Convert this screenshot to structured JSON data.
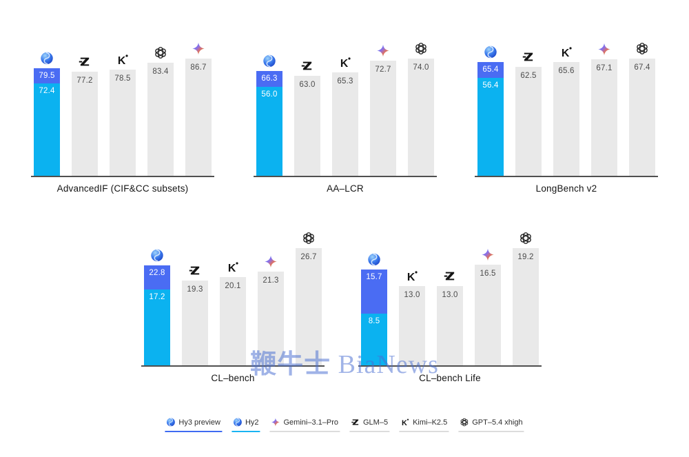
{
  "watermark": {
    "text_zh": "鞭牛士",
    "text_en": " BiaNews",
    "color": "#4a6fd2"
  },
  "colors": {
    "hy3_segment": "#4a6cf3",
    "hy2_segment": "#0bb2f0",
    "default_bar": "#e9e9e9",
    "axis": "#4f4f4f",
    "hy3_underline": "#3f6bf2",
    "hy2_underline": "#19b4f2",
    "default_underline": "#dcdcdc"
  },
  "chart_data": [
    {
      "type": "bar",
      "title": "AdvancedIF (CIF&CC subsets)",
      "ylim": [
        0,
        86.7
      ],
      "bars": [
        {
          "type": "stacked",
          "icon": "hunyuan-icon",
          "segments": [
            {
              "model": "Hy3 preview",
              "value": 79.5
            },
            {
              "model": "Hy2",
              "value": 72.4
            }
          ]
        },
        {
          "type": "plain",
          "icon": "glm-icon",
          "model": "GLM–5",
          "value": 77.2
        },
        {
          "type": "plain",
          "icon": "kimi-icon",
          "model": "Kimi–K2.5",
          "value": 78.5
        },
        {
          "type": "plain",
          "icon": "openai-icon",
          "model": "GPT–5.4 xhigh",
          "value": 83.4
        },
        {
          "type": "plain",
          "icon": "gemini-icon",
          "model": "Gemini–3.1–Pro",
          "value": 86.7
        }
      ]
    },
    {
      "type": "bar",
      "title": "AA–LCR",
      "ylim": [
        0,
        74.0
      ],
      "bars": [
        {
          "type": "stacked",
          "icon": "hunyuan-icon",
          "segments": [
            {
              "model": "Hy3 preview",
              "value": 66.3
            },
            {
              "model": "Hy2",
              "value": 56.0
            }
          ]
        },
        {
          "type": "plain",
          "icon": "glm-icon",
          "model": "GLM–5",
          "value": 63.0
        },
        {
          "type": "plain",
          "icon": "kimi-icon",
          "model": "Kimi–K2.5",
          "value": 65.3
        },
        {
          "type": "plain",
          "icon": "gemini-icon",
          "model": "Gemini–3.1–Pro",
          "value": 72.7
        },
        {
          "type": "plain",
          "icon": "openai-icon",
          "model": "GPT–5.4 xhigh",
          "value": 74.0
        }
      ]
    },
    {
      "type": "bar",
      "title": "LongBench v2",
      "ylim": [
        0,
        67.4
      ],
      "bars": [
        {
          "type": "stacked",
          "icon": "hunyuan-icon",
          "segments": [
            {
              "model": "Hy3 preview",
              "value": 65.4
            },
            {
              "model": "Hy2",
              "value": 56.4
            }
          ]
        },
        {
          "type": "plain",
          "icon": "glm-icon",
          "model": "GLM–5",
          "value": 62.5
        },
        {
          "type": "plain",
          "icon": "kimi-icon",
          "model": "Kimi–K2.5",
          "value": 65.6
        },
        {
          "type": "plain",
          "icon": "gemini-icon",
          "model": "Gemini–3.1–Pro",
          "value": 67.1
        },
        {
          "type": "plain",
          "icon": "openai-icon",
          "model": "GPT–5.4 xhigh",
          "value": 67.4
        }
      ]
    },
    {
      "type": "bar",
      "title": "CL–bench",
      "ylim": [
        0,
        26.7
      ],
      "bars": [
        {
          "type": "stacked",
          "icon": "hunyuan-icon",
          "segments": [
            {
              "model": "Hy3 preview",
              "value": 22.8
            },
            {
              "model": "Hy2",
              "value": 17.2
            }
          ]
        },
        {
          "type": "plain",
          "icon": "glm-icon",
          "model": "GLM–5",
          "value": 19.3
        },
        {
          "type": "plain",
          "icon": "kimi-icon",
          "model": "Kimi–K2.5",
          "value": 20.1
        },
        {
          "type": "plain",
          "icon": "gemini-icon",
          "model": "Gemini–3.1–Pro",
          "value": 21.3
        },
        {
          "type": "plain",
          "icon": "openai-icon",
          "model": "GPT–5.4 xhigh",
          "value": 26.7
        }
      ]
    },
    {
      "type": "bar",
      "title": "CL–bench Life",
      "ylim": [
        0,
        19.2
      ],
      "bars": [
        {
          "type": "stacked",
          "icon": "hunyuan-icon",
          "segments": [
            {
              "model": "Hy3 preview",
              "value": 15.7
            },
            {
              "model": "Hy2",
              "value": 8.5
            }
          ]
        },
        {
          "type": "plain",
          "icon": "kimi-icon",
          "model": "Kimi–K2.5",
          "value": 13.0
        },
        {
          "type": "plain",
          "icon": "glm-icon",
          "model": "GLM–5",
          "value": 13.0
        },
        {
          "type": "plain",
          "icon": "gemini-icon",
          "model": "Gemini–3.1–Pro",
          "value": 16.5
        },
        {
          "type": "plain",
          "icon": "openai-icon",
          "model": "GPT–5.4 xhigh",
          "value": 19.2
        }
      ]
    }
  ],
  "legend": {
    "items": [
      {
        "label": "Hy3 preview",
        "icon": "hunyuan-icon",
        "underline": "hy3_underline"
      },
      {
        "label": "Hy2",
        "icon": "hunyuan-icon",
        "underline": "hy2_underline"
      },
      {
        "label": "Gemini–3.1–Pro",
        "icon": "gemini-icon",
        "underline": "default_underline"
      },
      {
        "label": "GLM–5",
        "icon": "glm-icon",
        "underline": "default_underline"
      },
      {
        "label": "Kimi–K2.5",
        "icon": "kimi-icon",
        "underline": "default_underline"
      },
      {
        "label": "GPT–5.4 xhigh",
        "icon": "openai-icon",
        "underline": "default_underline"
      }
    ]
  }
}
